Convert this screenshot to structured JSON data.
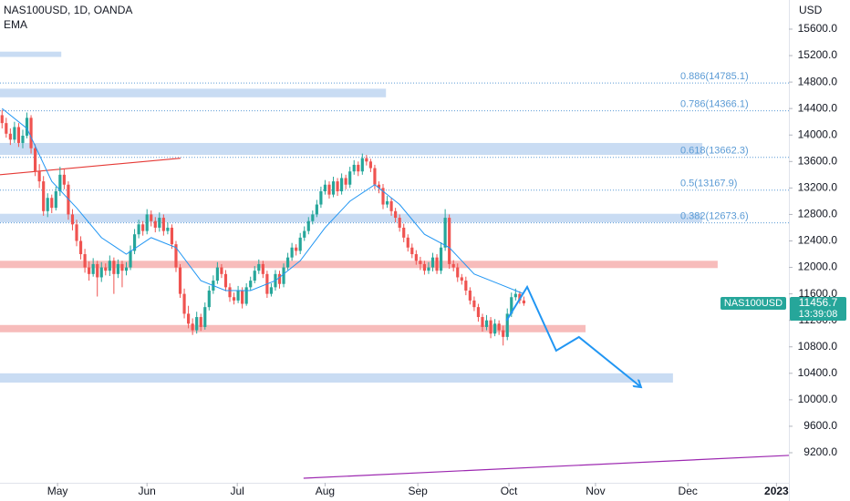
{
  "chart_data": {
    "type": "candlestick",
    "title": "NAS100USD, 1D, OANDA",
    "indicator": "EMA",
    "axis_unit": "USD",
    "symbol": "NAS100USD",
    "countdown": "13:39:08",
    "up_color": "#26a69a",
    "down_color": "#ef5350",
    "xlim": [
      -0.5,
      190
    ],
    "ylim": [
      8746,
      16040
    ],
    "xticks": [
      {
        "value": 13.4,
        "label": "May"
      },
      {
        "value": 35,
        "label": "Jun"
      },
      {
        "value": 56.8,
        "label": "Jul"
      },
      {
        "value": 78,
        "label": "Aug"
      },
      {
        "value": 100.4,
        "label": "Sep"
      },
      {
        "value": 122.4,
        "label": "Oct"
      },
      {
        "value": 143.3,
        "label": "Nov"
      },
      {
        "value": 165.6,
        "label": "Dec"
      },
      {
        "value": 187,
        "label": "2023"
      }
    ],
    "yticks": [
      {
        "value": 15600,
        "label": "15600.0"
      },
      {
        "value": 15200,
        "label": "15200.0"
      },
      {
        "value": 14800,
        "label": "14800.0"
      },
      {
        "value": 14400,
        "label": "14400.0"
      },
      {
        "value": 14000,
        "label": "14000.0"
      },
      {
        "value": 13600,
        "label": "13600.0"
      },
      {
        "value": 13200,
        "label": "13200.0"
      },
      {
        "value": 12800,
        "label": "12800.0"
      },
      {
        "value": 12400,
        "label": "12400.0"
      },
      {
        "value": 12000,
        "label": "12000.0"
      },
      {
        "value": 11600,
        "label": "11600.0"
      },
      {
        "value": 11200,
        "label": "11200.0"
      },
      {
        "value": 10800,
        "label": "10800.0"
      },
      {
        "value": 10400,
        "label": "10400.0"
      },
      {
        "value": 10000,
        "label": "10000.0"
      },
      {
        "value": 9600,
        "label": "9600.0"
      },
      {
        "value": 9200,
        "label": "9200.0"
      }
    ],
    "ohlc": [
      [
        14300,
        14380,
        14100,
        14180
      ],
      [
        14180,
        14260,
        13960,
        14020
      ],
      [
        14020,
        14100,
        13850,
        13930
      ],
      [
        13930,
        14200,
        13880,
        14120
      ],
      [
        14120,
        14180,
        13820,
        13880
      ],
      [
        13880,
        14080,
        13800,
        13990
      ],
      [
        13990,
        14340,
        13950,
        14260
      ],
      [
        14260,
        14300,
        13720,
        13800
      ],
      [
        13800,
        13860,
        13380,
        13450
      ],
      [
        13450,
        13560,
        13200,
        13300
      ],
      [
        13300,
        13380,
        12780,
        12850
      ],
      [
        12850,
        13120,
        12760,
        13050
      ],
      [
        13050,
        13100,
        12820,
        12900
      ],
      [
        12900,
        13220,
        12860,
        13150
      ],
      [
        13150,
        13520,
        13080,
        13400
      ],
      [
        13400,
        13480,
        13180,
        13250
      ],
      [
        13250,
        13300,
        12720,
        12800
      ],
      [
        12800,
        12880,
        12560,
        12650
      ],
      [
        12650,
        12720,
        12320,
        12400
      ],
      [
        12400,
        12470,
        12120,
        12200
      ],
      [
        12200,
        12280,
        11920,
        12000
      ],
      [
        12000,
        12090,
        11800,
        11900
      ],
      [
        11900,
        12140,
        11860,
        12050
      ],
      [
        12050,
        12100,
        11560,
        11850
      ],
      [
        11850,
        12080,
        11780,
        12000
      ],
      [
        12000,
        12060,
        11880,
        11950
      ],
      [
        11950,
        12180,
        11870,
        12100
      ],
      [
        12100,
        12150,
        11600,
        11900
      ],
      [
        11900,
        12120,
        11840,
        12050
      ],
      [
        12050,
        12100,
        11700,
        11950
      ],
      [
        11950,
        12080,
        11880,
        12000
      ],
      [
        12000,
        12330,
        11960,
        12250
      ],
      [
        12250,
        12580,
        12200,
        12500
      ],
      [
        12500,
        12720,
        12440,
        12650
      ],
      [
        12650,
        12700,
        12480,
        12550
      ],
      [
        12550,
        12880,
        12500,
        12800
      ],
      [
        12800,
        12860,
        12620,
        12700
      ],
      [
        12700,
        12760,
        12530,
        12600
      ],
      [
        12600,
        12830,
        12540,
        12750
      ],
      [
        12750,
        12800,
        12480,
        12550
      ],
      [
        12550,
        12680,
        12500,
        12600
      ],
      [
        12600,
        12650,
        12280,
        12350
      ],
      [
        12350,
        12400,
        11930,
        12000
      ],
      [
        12000,
        12050,
        11540,
        11600
      ],
      [
        11600,
        11680,
        11230,
        11300
      ],
      [
        11300,
        11420,
        11080,
        11150
      ],
      [
        11150,
        11230,
        10980,
        11050
      ],
      [
        11050,
        11330,
        11000,
        11250
      ],
      [
        11250,
        11300,
        11040,
        11100
      ],
      [
        11100,
        11470,
        11060,
        11400
      ],
      [
        11400,
        11720,
        11350,
        11650
      ],
      [
        11650,
        11880,
        11600,
        11800
      ],
      [
        11800,
        12080,
        11750,
        12000
      ],
      [
        12000,
        12050,
        11840,
        11900
      ],
      [
        11900,
        11960,
        11640,
        11700
      ],
      [
        11700,
        11760,
        11480,
        11550
      ],
      [
        11550,
        11620,
        11440,
        11500
      ],
      [
        11500,
        11720,
        11460,
        11650
      ],
      [
        11650,
        11700,
        11380,
        11450
      ],
      [
        11450,
        11760,
        11420,
        11700
      ],
      [
        11700,
        11860,
        11650,
        11800
      ],
      [
        11800,
        12020,
        11760,
        11950
      ],
      [
        11950,
        12120,
        11900,
        12050
      ],
      [
        12050,
        12100,
        11840,
        11900
      ],
      [
        11900,
        11950,
        11540,
        11600
      ],
      [
        11600,
        11760,
        11560,
        11700
      ],
      [
        11700,
        11960,
        11650,
        11900
      ],
      [
        11900,
        11950,
        11680,
        11750
      ],
      [
        11750,
        12060,
        11700,
        12000
      ],
      [
        12000,
        12220,
        11960,
        12150
      ],
      [
        12150,
        12370,
        12100,
        12300
      ],
      [
        12300,
        12350,
        12180,
        12250
      ],
      [
        12250,
        12520,
        12200,
        12450
      ],
      [
        12450,
        12620,
        12400,
        12550
      ],
      [
        12550,
        12760,
        12500,
        12700
      ],
      [
        12700,
        12860,
        12650,
        12800
      ],
      [
        12800,
        13020,
        12760,
        12950
      ],
      [
        12950,
        13220,
        12900,
        13150
      ],
      [
        13150,
        13320,
        13100,
        13250
      ],
      [
        13250,
        13300,
        13040,
        13100
      ],
      [
        13100,
        13370,
        13060,
        13300
      ],
      [
        13300,
        13350,
        13080,
        13150
      ],
      [
        13150,
        13420,
        13100,
        13350
      ],
      [
        13350,
        13400,
        13180,
        13250
      ],
      [
        13250,
        13520,
        13200,
        13450
      ],
      [
        13450,
        13620,
        13400,
        13550
      ],
      [
        13550,
        13600,
        13380,
        13450
      ],
      [
        13450,
        13720,
        13400,
        13650
      ],
      [
        13650,
        13700,
        13540,
        13600
      ],
      [
        13600,
        13640,
        13440,
        13500
      ],
      [
        13500,
        13550,
        13180,
        13250
      ],
      [
        13250,
        13300,
        13120,
        13200
      ],
      [
        13200,
        13260,
        12880,
        12950
      ],
      [
        12950,
        13080,
        12900,
        13000
      ],
      [
        13000,
        13050,
        12780,
        12850
      ],
      [
        12850,
        12900,
        12680,
        12750
      ],
      [
        12750,
        12800,
        12540,
        12600
      ],
      [
        12600,
        12660,
        12380,
        12450
      ],
      [
        12450,
        12500,
        12240,
        12300
      ],
      [
        12300,
        12360,
        12140,
        12200
      ],
      [
        12200,
        12260,
        12040,
        12100
      ],
      [
        12100,
        12160,
        11960,
        12050
      ],
      [
        12050,
        12100,
        11890,
        11950
      ],
      [
        11950,
        12080,
        11900,
        12000
      ],
      [
        12000,
        12220,
        11940,
        12150
      ],
      [
        12150,
        12200,
        11900,
        11950
      ],
      [
        11950,
        12380,
        11900,
        12300
      ],
      [
        12300,
        12880,
        12250,
        12750
      ],
      [
        12750,
        12800,
        11980,
        12050
      ],
      [
        12050,
        12110,
        11940,
        12000
      ],
      [
        12000,
        12060,
        11780,
        11850
      ],
      [
        11850,
        11900,
        11740,
        11800
      ],
      [
        11800,
        11860,
        11580,
        11650
      ],
      [
        11650,
        11700,
        11440,
        11500
      ],
      [
        11500,
        11560,
        11340,
        11400
      ],
      [
        11400,
        11450,
        11180,
        11250
      ],
      [
        11250,
        11300,
        11030,
        11100
      ],
      [
        11100,
        11280,
        11050,
        11200
      ],
      [
        11200,
        11250,
        10930,
        11000
      ],
      [
        11000,
        11220,
        10960,
        11150
      ],
      [
        11150,
        11200,
        10980,
        11050
      ],
      [
        11050,
        11120,
        10820,
        10950
      ],
      [
        10950,
        11380,
        10900,
        11300
      ],
      [
        11300,
        11620,
        11250,
        11550
      ],
      [
        11550,
        11680,
        11500,
        11600
      ],
      [
        11600,
        11640,
        11450,
        11500
      ],
      [
        11500,
        11560,
        11420,
        11456.7
      ]
    ],
    "ema": {
      "color": "#2196f3",
      "x": [
        0,
        6,
        12,
        18,
        24,
        30,
        36,
        42,
        48,
        54,
        60,
        66,
        72,
        78,
        84,
        90,
        96,
        102,
        108,
        114,
        120,
        126
      ],
      "values": [
        14400,
        14100,
        13300,
        12900,
        12450,
        12200,
        12450,
        12300,
        11800,
        11650,
        11650,
        11800,
        12100,
        12600,
        13000,
        13250,
        12950,
        12500,
        12300,
        11900,
        11750,
        11600
      ]
    },
    "fib_color": "#5b9bd5",
    "fib_levels": [
      {
        "label": "0.886(14785.1)",
        "value": 14785.1
      },
      {
        "label": "0.786(14366.1)",
        "value": 14366.1
      },
      {
        "label": "0.618(13662.3)",
        "value": 13662.3
      },
      {
        "label": "0.5(13167.9)",
        "value": 13167.9
      },
      {
        "label": "0.382(12673.6)",
        "value": 12673.6
      }
    ],
    "zones": [
      {
        "x": [
          -0.5,
          14.3
        ],
        "y": [
          15180,
          15260
        ],
        "color": "#c9dcf3"
      },
      {
        "x": [
          -0.5,
          92.7
        ],
        "y": [
          14570,
          14700
        ],
        "color": "#c9dcf3"
      },
      {
        "x": [
          -0.5,
          169.1
        ],
        "y": [
          13700,
          13880
        ],
        "color": "#c9dcf3"
      },
      {
        "x": [
          -0.5,
          169.1
        ],
        "y": [
          12680,
          12810
        ],
        "color": "#c9dcf3"
      },
      {
        "x": [
          -0.5,
          172.8
        ],
        "y": [
          11990,
          12100
        ],
        "color": "#f7bcbb"
      },
      {
        "x": [
          -0.5,
          140.9
        ],
        "y": [
          11020,
          11130
        ],
        "color": "#f7bcbb"
      },
      {
        "x": [
          -0.5,
          162
        ],
        "y": [
          10260,
          10400
        ],
        "color": "#c9dcf3"
      }
    ],
    "lines": [
      {
        "x": [
          -0.5,
          43.1
        ],
        "y": [
          13400,
          13650
        ],
        "color": "#e53935"
      },
      {
        "x": [
          72.8,
          190
        ],
        "y": [
          8815,
          9160
        ],
        "color": "#9c27b0"
      }
    ],
    "projection": {
      "x": [
        121.8,
        126.8,
        133.8,
        139.3,
        154.3
      ],
      "y": [
        11196,
        11705,
        10742,
        10948,
        10191
      ],
      "color": "#2196f3"
    }
  }
}
